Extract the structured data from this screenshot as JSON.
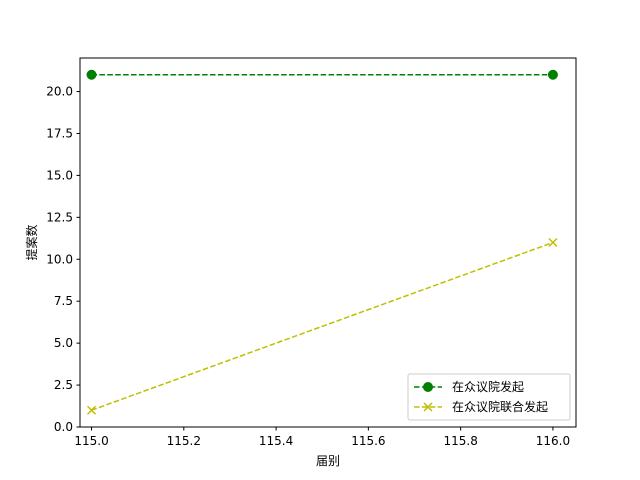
{
  "chart_data": {
    "type": "line",
    "title": "",
    "xlabel": "届别",
    "ylabel": "提案数",
    "xlim": [
      114.975,
      116.05
    ],
    "ylim": [
      0,
      22
    ],
    "xticks": [
      "115.0",
      "115.2",
      "115.4",
      "115.6",
      "115.8",
      "116.0"
    ],
    "yticks": [
      "0.0",
      "2.5",
      "5.0",
      "7.5",
      "10.0",
      "12.5",
      "15.0",
      "17.5",
      "20.0"
    ],
    "grid": false,
    "legend_position": "lower-right",
    "series": [
      {
        "name": "在众议院发起",
        "x": [
          115,
          116
        ],
        "y": [
          21,
          21
        ],
        "color": "#008000",
        "linestyle": "dashed",
        "marker": "circle"
      },
      {
        "name": "在众议院联合发起",
        "x": [
          115,
          116
        ],
        "y": [
          1,
          11
        ],
        "color": "#bfbf00",
        "linestyle": "dashed",
        "marker": "x"
      }
    ]
  }
}
